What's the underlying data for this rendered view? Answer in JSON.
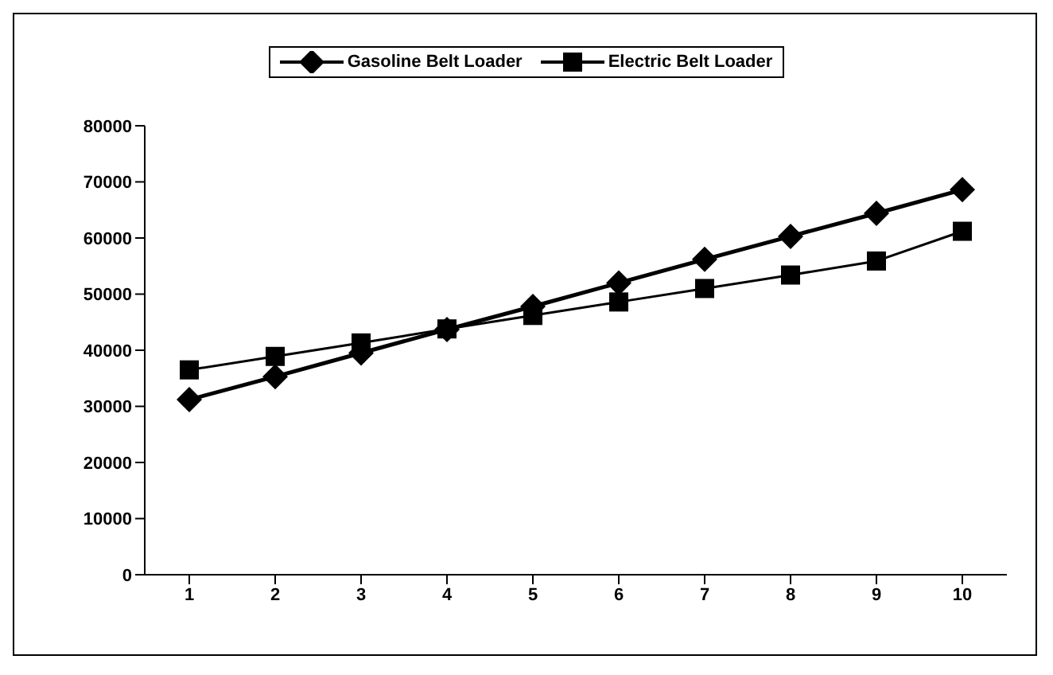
{
  "chart_data": {
    "type": "line",
    "categories": [
      "1",
      "2",
      "3",
      "4",
      "5",
      "6",
      "7",
      "8",
      "9",
      "10"
    ],
    "series": [
      {
        "name": "Gasoline Belt Loader",
        "color": "#000000",
        "marker": "diamond",
        "values": [
          31200,
          35300,
          39500,
          43700,
          47800,
          52000,
          56200,
          60300,
          64400,
          68600
        ]
      },
      {
        "name": "Electric Belt Loader",
        "color": "#000000",
        "marker": "square",
        "values": [
          36500,
          38900,
          41300,
          43800,
          46200,
          48600,
          51000,
          53400,
          55900,
          61200
        ]
      }
    ],
    "ylim": [
      0,
      80000
    ],
    "yticks": [
      0,
      10000,
      20000,
      30000,
      40000,
      50000,
      60000,
      70000,
      80000
    ],
    "grid": false,
    "legend": "top"
  }
}
